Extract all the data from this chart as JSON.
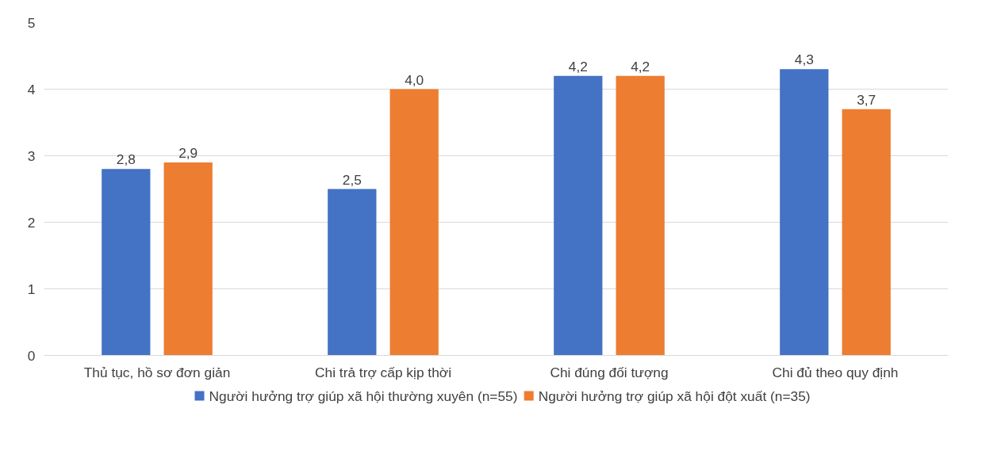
{
  "chart_data": {
    "type": "bar",
    "categories": [
      "Thủ tục, hồ sơ đơn giản",
      "Chi trả trợ cấp kịp thời",
      "Chi đúng đối tượng",
      "Chi đủ theo quy định"
    ],
    "series": [
      {
        "name": "Người hưởng trợ giúp xã hội thường xuyên (n=55)",
        "color": "#4472c4",
        "values": [
          2.8,
          2.5,
          4.2,
          4.3
        ],
        "value_labels": [
          "2,8",
          "2,5",
          "4,2",
          "4,3"
        ]
      },
      {
        "name": "Người hưởng trợ giúp xã hội đột xuất (n=35)",
        "color": "#ed7d31",
        "values": [
          2.9,
          4.0,
          4.2,
          3.7
        ],
        "value_labels": [
          "2,9",
          "4,0",
          "4,2",
          "3,7"
        ]
      }
    ],
    "ylim": [
      0,
      5
    ],
    "yticks": [
      0,
      1,
      2,
      3,
      4,
      5
    ],
    "grid": "y",
    "legend": "bottom"
  }
}
